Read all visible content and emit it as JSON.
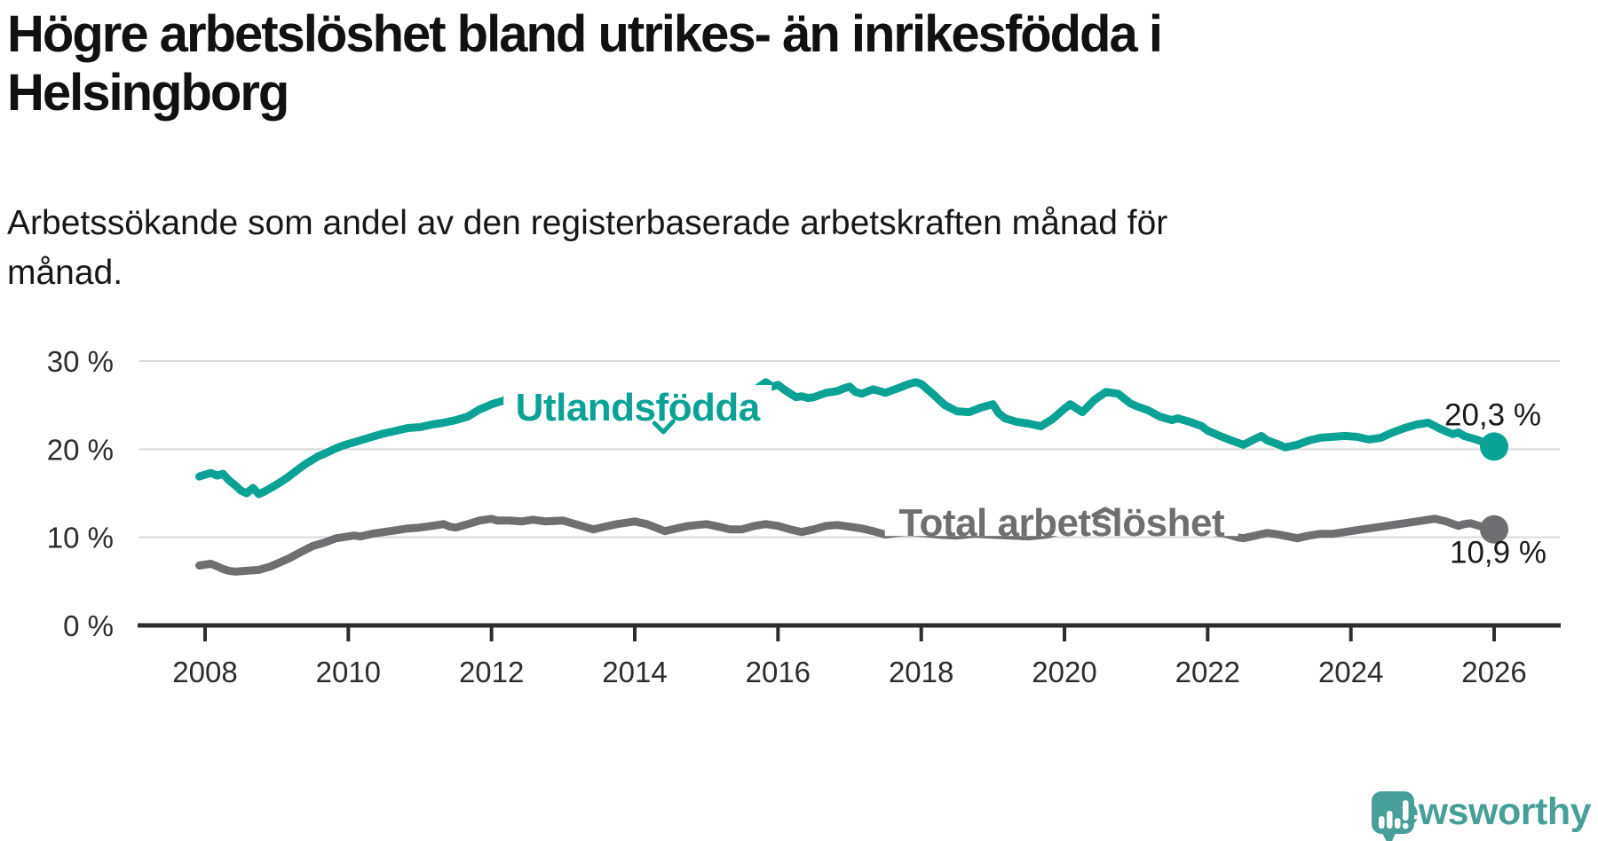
{
  "title": {
    "lines": [
      "Högre arbetslöshet bland utrikes- än inrikesfödda i",
      "Helsingborg"
    ]
  },
  "subtitle": {
    "lines": [
      "Arbetssökande som andel av den registerbaserade arbetskraften månad för",
      "månad."
    ]
  },
  "chart_data": {
    "type": "line",
    "grid": true,
    "grid_color": "#d9d9d9",
    "axis_color": "#2d2d2d",
    "x_axis": {
      "ticks": [
        2008,
        2010,
        2012,
        2014,
        2016,
        2018,
        2020,
        2022,
        2024,
        2026
      ],
      "labels": [
        "2008",
        "2010",
        "2012",
        "2014",
        "2016",
        "2018",
        "2020",
        "2022",
        "2024",
        "2026"
      ]
    },
    "y_axis": {
      "range": [
        0,
        30
      ],
      "ticks": [
        {
          "value": 30,
          "label": "30 %"
        },
        {
          "value": 20,
          "label": "20 %"
        },
        {
          "value": 10,
          "label": "10 %"
        },
        {
          "value": 0,
          "label": "0 %"
        }
      ]
    },
    "series": [
      {
        "name": "Utlandsfödda",
        "color": "#0ba296",
        "end_label": "20,3 %",
        "end_value": 20.3,
        "label": {
          "text": "Utlandsfödda",
          "t": 2014.04,
          "v": 23.25,
          "halo_w": 302,
          "caret": "below",
          "caret_t": 2014.4,
          "caret_v": 22.25
        },
        "points": [
          [
            2007.92,
            16.9
          ],
          [
            2008.0,
            17.1
          ],
          [
            2008.08,
            17.3
          ],
          [
            2008.17,
            17.0
          ],
          [
            2008.25,
            17.2
          ],
          [
            2008.33,
            16.5
          ],
          [
            2008.42,
            15.9
          ],
          [
            2008.5,
            15.3
          ],
          [
            2008.58,
            15.0
          ],
          [
            2008.67,
            15.6
          ],
          [
            2008.75,
            14.9
          ],
          [
            2008.83,
            15.2
          ],
          [
            2008.92,
            15.6
          ],
          [
            2009.0,
            16.0
          ],
          [
            2009.08,
            16.4
          ],
          [
            2009.17,
            16.9
          ],
          [
            2009.25,
            17.4
          ],
          [
            2009.33,
            17.9
          ],
          [
            2009.42,
            18.4
          ],
          [
            2009.5,
            18.8
          ],
          [
            2009.58,
            19.2
          ],
          [
            2009.67,
            19.5
          ],
          [
            2009.75,
            19.8
          ],
          [
            2009.83,
            20.1
          ],
          [
            2009.92,
            20.4
          ],
          [
            2010.0,
            20.6
          ],
          [
            2010.17,
            21.0
          ],
          [
            2010.33,
            21.4
          ],
          [
            2010.5,
            21.8
          ],
          [
            2010.67,
            22.1
          ],
          [
            2010.83,
            22.4
          ],
          [
            2011.0,
            22.5
          ],
          [
            2011.17,
            22.8
          ],
          [
            2011.33,
            23.0
          ],
          [
            2011.5,
            23.3
          ],
          [
            2011.67,
            23.7
          ],
          [
            2011.83,
            24.5
          ],
          [
            2011.92,
            24.8
          ],
          [
            2012.0,
            25.1
          ],
          [
            2012.08,
            25.3
          ],
          [
            2012.17,
            25.5
          ],
          [
            2012.25,
            26.0
          ],
          [
            2012.33,
            25.4
          ],
          [
            2012.5,
            25.1
          ],
          [
            2012.75,
            24.8
          ],
          [
            2013.0,
            24.6
          ],
          [
            2013.25,
            24.7
          ],
          [
            2013.5,
            24.9
          ],
          [
            2013.75,
            25.0
          ],
          [
            2014.0,
            25.2
          ],
          [
            2014.25,
            25.4
          ],
          [
            2014.5,
            25.6
          ],
          [
            2014.75,
            25.9
          ],
          [
            2015.0,
            26.1
          ],
          [
            2015.25,
            26.3
          ],
          [
            2015.5,
            26.5
          ],
          [
            2015.67,
            26.7
          ],
          [
            2015.83,
            27.6
          ],
          [
            2015.92,
            27.1
          ],
          [
            2016.0,
            27.3
          ],
          [
            2016.08,
            26.8
          ],
          [
            2016.25,
            25.9
          ],
          [
            2016.33,
            26.0
          ],
          [
            2016.42,
            25.8
          ],
          [
            2016.5,
            25.9
          ],
          [
            2016.67,
            26.4
          ],
          [
            2016.83,
            26.6
          ],
          [
            2016.92,
            26.9
          ],
          [
            2017.0,
            27.1
          ],
          [
            2017.08,
            26.5
          ],
          [
            2017.17,
            26.3
          ],
          [
            2017.33,
            26.8
          ],
          [
            2017.5,
            26.4
          ],
          [
            2017.67,
            26.9
          ],
          [
            2017.83,
            27.4
          ],
          [
            2017.92,
            27.6
          ],
          [
            2018.0,
            27.4
          ],
          [
            2018.17,
            26.2
          ],
          [
            2018.33,
            25.0
          ],
          [
            2018.5,
            24.3
          ],
          [
            2018.67,
            24.2
          ],
          [
            2018.83,
            24.7
          ],
          [
            2019.0,
            25.1
          ],
          [
            2019.08,
            24.1
          ],
          [
            2019.17,
            23.5
          ],
          [
            2019.33,
            23.1
          ],
          [
            2019.5,
            22.9
          ],
          [
            2019.67,
            22.6
          ],
          [
            2019.83,
            23.4
          ],
          [
            2020.0,
            24.6
          ],
          [
            2020.08,
            25.1
          ],
          [
            2020.25,
            24.2
          ],
          [
            2020.42,
            25.6
          ],
          [
            2020.58,
            26.5
          ],
          [
            2020.75,
            26.3
          ],
          [
            2020.92,
            25.2
          ],
          [
            2021.0,
            24.9
          ],
          [
            2021.17,
            24.4
          ],
          [
            2021.33,
            23.7
          ],
          [
            2021.5,
            23.3
          ],
          [
            2021.58,
            23.5
          ],
          [
            2021.75,
            23.1
          ],
          [
            2021.92,
            22.6
          ],
          [
            2022.0,
            22.1
          ],
          [
            2022.17,
            21.5
          ],
          [
            2022.33,
            21.0
          ],
          [
            2022.5,
            20.5
          ],
          [
            2022.67,
            21.2
          ],
          [
            2022.75,
            21.5
          ],
          [
            2022.83,
            21.0
          ],
          [
            2023.0,
            20.5
          ],
          [
            2023.08,
            20.2
          ],
          [
            2023.25,
            20.5
          ],
          [
            2023.42,
            21.0
          ],
          [
            2023.58,
            21.3
          ],
          [
            2023.75,
            21.4
          ],
          [
            2023.92,
            21.5
          ],
          [
            2024.08,
            21.4
          ],
          [
            2024.25,
            21.1
          ],
          [
            2024.42,
            21.3
          ],
          [
            2024.58,
            21.9
          ],
          [
            2024.75,
            22.4
          ],
          [
            2024.92,
            22.8
          ],
          [
            2025.08,
            23.0
          ],
          [
            2025.25,
            22.3
          ],
          [
            2025.42,
            21.7
          ],
          [
            2025.5,
            21.9
          ],
          [
            2025.58,
            21.5
          ],
          [
            2025.75,
            21.1
          ],
          [
            2025.92,
            20.6
          ],
          [
            2026.0,
            20.3
          ]
        ]
      },
      {
        "name": "Total arbetslöshet",
        "color": "#6f6f72",
        "end_label": "10,9 %",
        "end_value": 10.9,
        "label": {
          "text": "Total arbetslöshet",
          "t": 2019.96,
          "v": 10.15,
          "halo_w": 398,
          "caret": "above",
          "caret_t": 2020.57,
          "caret_v": 13.1
        },
        "points": [
          [
            2007.92,
            6.8
          ],
          [
            2008.0,
            6.9
          ],
          [
            2008.08,
            7.0
          ],
          [
            2008.17,
            6.7
          ],
          [
            2008.25,
            6.4
          ],
          [
            2008.33,
            6.2
          ],
          [
            2008.42,
            6.1
          ],
          [
            2008.58,
            6.2
          ],
          [
            2008.75,
            6.3
          ],
          [
            2008.92,
            6.7
          ],
          [
            2009.0,
            7.0
          ],
          [
            2009.17,
            7.6
          ],
          [
            2009.33,
            8.3
          ],
          [
            2009.5,
            9.0
          ],
          [
            2009.67,
            9.4
          ],
          [
            2009.83,
            9.9
          ],
          [
            2009.92,
            10.0
          ],
          [
            2010.08,
            10.2
          ],
          [
            2010.17,
            10.1
          ],
          [
            2010.33,
            10.4
          ],
          [
            2010.5,
            10.6
          ],
          [
            2010.67,
            10.8
          ],
          [
            2010.83,
            11.0
          ],
          [
            2011.0,
            11.1
          ],
          [
            2011.17,
            11.3
          ],
          [
            2011.33,
            11.5
          ],
          [
            2011.42,
            11.2
          ],
          [
            2011.5,
            11.1
          ],
          [
            2011.67,
            11.5
          ],
          [
            2011.83,
            11.9
          ],
          [
            2012.0,
            12.1
          ],
          [
            2012.08,
            11.9
          ],
          [
            2012.25,
            11.9
          ],
          [
            2012.42,
            11.8
          ],
          [
            2012.58,
            12.0
          ],
          [
            2012.75,
            11.8
          ],
          [
            2013.0,
            11.9
          ],
          [
            2013.17,
            11.5
          ],
          [
            2013.42,
            10.9
          ],
          [
            2013.58,
            11.2
          ],
          [
            2013.75,
            11.5
          ],
          [
            2014.0,
            11.8
          ],
          [
            2014.17,
            11.5
          ],
          [
            2014.42,
            10.7
          ],
          [
            2014.58,
            11.0
          ],
          [
            2014.75,
            11.3
          ],
          [
            2015.0,
            11.5
          ],
          [
            2015.17,
            11.2
          ],
          [
            2015.33,
            10.9
          ],
          [
            2015.5,
            10.9
          ],
          [
            2015.67,
            11.3
          ],
          [
            2015.83,
            11.5
          ],
          [
            2016.0,
            11.3
          ],
          [
            2016.17,
            10.9
          ],
          [
            2016.33,
            10.6
          ],
          [
            2016.5,
            10.9
          ],
          [
            2016.67,
            11.3
          ],
          [
            2016.83,
            11.4
          ],
          [
            2017.0,
            11.2
          ],
          [
            2017.17,
            11.0
          ],
          [
            2017.33,
            10.7
          ],
          [
            2017.5,
            10.3
          ],
          [
            2017.67,
            10.5
          ],
          [
            2017.83,
            10.6
          ],
          [
            2018.0,
            10.5
          ],
          [
            2018.25,
            10.3
          ],
          [
            2018.5,
            10.2
          ],
          [
            2018.75,
            10.4
          ],
          [
            2019.0,
            10.3
          ],
          [
            2019.25,
            10.2
          ],
          [
            2019.5,
            10.1
          ],
          [
            2019.75,
            10.3
          ],
          [
            2020.0,
            10.8
          ],
          [
            2020.25,
            11.6
          ],
          [
            2020.5,
            12.0
          ],
          [
            2020.75,
            12.2
          ],
          [
            2021.0,
            12.0
          ],
          [
            2021.25,
            11.6
          ],
          [
            2021.5,
            11.3
          ],
          [
            2021.75,
            11.0
          ],
          [
            2022.0,
            10.7
          ],
          [
            2022.25,
            10.4
          ],
          [
            2022.42,
            10.0
          ],
          [
            2022.5,
            9.9
          ],
          [
            2022.67,
            10.2
          ],
          [
            2022.83,
            10.5
          ],
          [
            2023.0,
            10.3
          ],
          [
            2023.25,
            9.9
          ],
          [
            2023.42,
            10.2
          ],
          [
            2023.58,
            10.4
          ],
          [
            2023.75,
            10.4
          ],
          [
            2023.92,
            10.6
          ],
          [
            2024.08,
            10.8
          ],
          [
            2024.25,
            11.0
          ],
          [
            2024.42,
            11.2
          ],
          [
            2024.58,
            11.4
          ],
          [
            2024.75,
            11.6
          ],
          [
            2024.92,
            11.8
          ],
          [
            2025.08,
            12.0
          ],
          [
            2025.17,
            12.1
          ],
          [
            2025.33,
            11.8
          ],
          [
            2025.5,
            11.3
          ],
          [
            2025.58,
            11.5
          ],
          [
            2025.67,
            11.6
          ],
          [
            2025.83,
            11.2
          ],
          [
            2025.92,
            11.0
          ],
          [
            2026.0,
            10.9
          ]
        ]
      }
    ]
  },
  "logo": {
    "text": "Newsworthy",
    "color": "#489f98",
    "icon": "newsworthy-speech-bubble-bar-chart"
  }
}
